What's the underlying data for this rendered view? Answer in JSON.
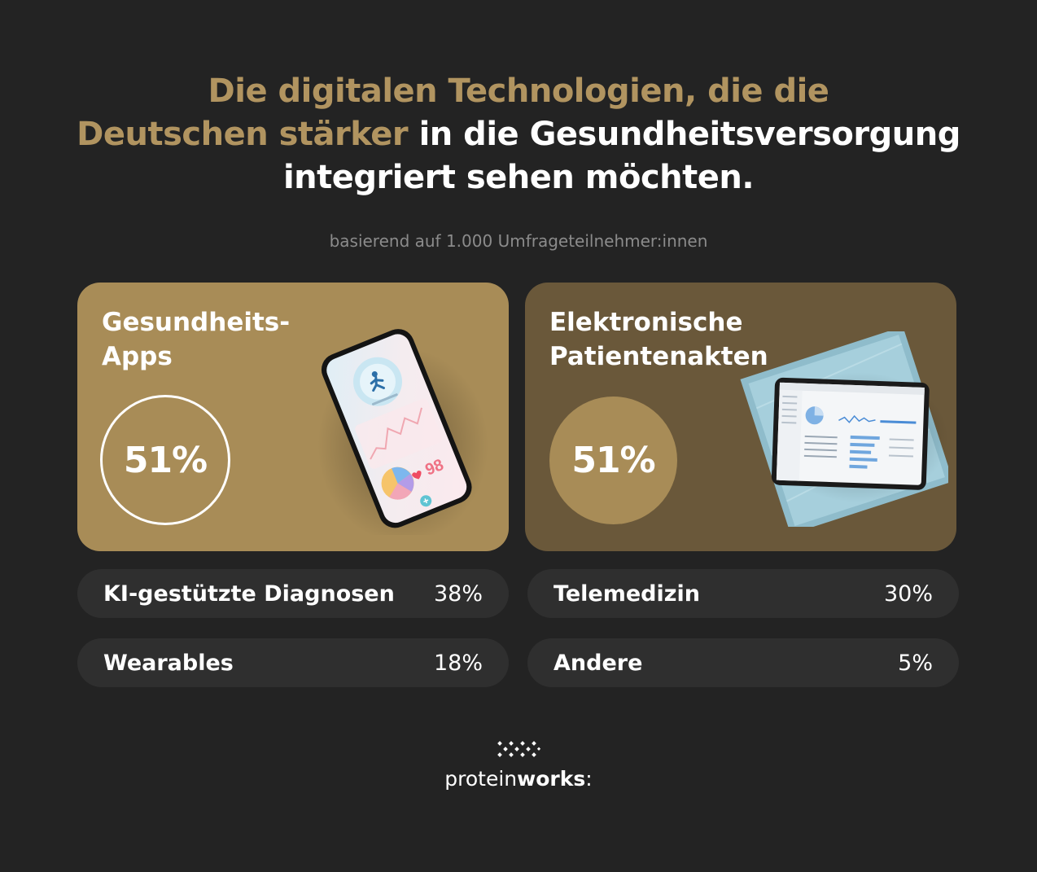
{
  "headline": {
    "part1": "Die digitalen Technologien, die die",
    "part2": "Deutschen stärker",
    "part3": " in die Gesundheitsversorgung",
    "part4": "integriert sehen möchten."
  },
  "subtitle": "basierend auf 1.000 Umfrageteilnehmer:innen",
  "cards": [
    {
      "title": "Gesundheits-\nApps",
      "value": "51%",
      "phone_stat": "98"
    },
    {
      "title": "Elektronische\nPatientenakten",
      "value": "51%"
    }
  ],
  "rows": [
    {
      "label": "KI-gestützte Diagnosen",
      "value": "38%"
    },
    {
      "label": "Telemedizin",
      "value": "30%"
    },
    {
      "label": "Wearables",
      "value": "18%"
    },
    {
      "label": "Andere",
      "value": "5%"
    }
  ],
  "brand": {
    "name_light": "protein",
    "name_bold": "works",
    "name_suffix": ":"
  },
  "colors": {
    "background": "#232323",
    "gold": "#b19460",
    "card_left": "#a88c57",
    "card_right": "#6a583a",
    "pill": "#2f2f2f",
    "subtitle": "#8b8b8b"
  }
}
